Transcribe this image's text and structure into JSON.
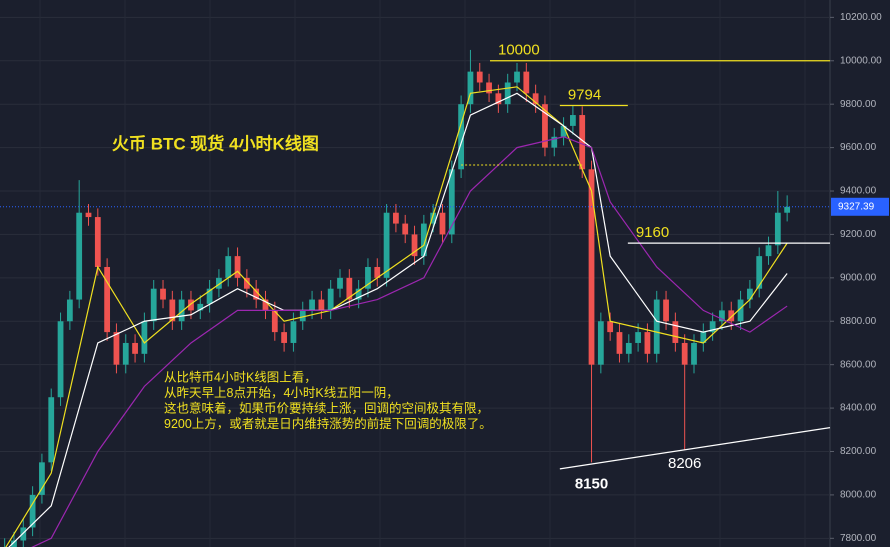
{
  "chart_data": {
    "type": "candlestick",
    "title": "火币 BTC 现货 4小时K线图",
    "commentary": [
      "从比特币4小时K线图上看，",
      "从昨天早上8点开始，4小时K线五阳一阴，",
      "这也意味着，如果币价要持续上涨，回调的空间极其有限，",
      "9200上方，或者就是日内维持涨势的前提下回调的极限了。"
    ],
    "up_color": "#26a69a",
    "down_color": "#ef5350",
    "xlim": [
      -0.5,
      88.6
    ],
    "ylim": [
      7760,
      10280
    ],
    "yticks": [
      {
        "value": 7800,
        "label": "7800.00"
      },
      {
        "value": 8000,
        "label": "8000.00"
      },
      {
        "value": 8200,
        "label": "8200.00"
      },
      {
        "value": 8400,
        "label": "8400.00"
      },
      {
        "value": 8600,
        "label": "8600.00"
      },
      {
        "value": 8800,
        "label": "8800.00"
      },
      {
        "value": 9000,
        "label": "9000.00"
      },
      {
        "value": 9200,
        "label": "9200.00"
      },
      {
        "value": 9400,
        "label": "9400.00"
      },
      {
        "value": 9600,
        "label": "9600.00"
      },
      {
        "value": 9800,
        "label": "9800.00"
      },
      {
        "value": 10000,
        "label": "10000.00"
      },
      {
        "value": 10200,
        "label": "10200.00"
      }
    ],
    "grid": true,
    "open": [
      7740,
      7760,
      7790,
      7850,
      8000,
      8150,
      8450,
      8800,
      8900,
      9300,
      9280,
      9050,
      8750,
      8600,
      8700,
      8650,
      8800,
      8950,
      8900,
      8800,
      8900,
      8850,
      8880,
      8950,
      9000,
      9100,
      9000,
      8950,
      8900,
      8850,
      8750,
      8700,
      8800,
      8850,
      8900,
      8850,
      8950,
      9000,
      8900,
      8950,
      9050,
      9000,
      9300,
      9250,
      9200,
      9100,
      9250,
      9300,
      9200,
      9500,
      9800,
      9950,
      9900,
      9850,
      9800,
      9900,
      9950,
      9850,
      9800,
      9600,
      9650,
      9700,
      9750,
      9500,
      8600,
      8800,
      8750,
      8650,
      8700,
      8750,
      8650,
      8900,
      8800,
      8700,
      8600,
      8700,
      8750,
      8800,
      8850,
      8800,
      8900,
      8950,
      9100,
      9150,
      9300
    ],
    "high": [
      7800,
      7830,
      7890,
      8040,
      8190,
      8490,
      8840,
      8940,
      9450,
      9340,
      9320,
      9090,
      8790,
      8740,
      8740,
      8840,
      8990,
      8990,
      8940,
      8940,
      8940,
      8920,
      8990,
      9040,
      9140,
      9140,
      9040,
      8990,
      8940,
      8890,
      8790,
      8840,
      8890,
      8940,
      8940,
      8990,
      9040,
      9040,
      8990,
      9090,
      9090,
      9340,
      9340,
      9290,
      9240,
      9290,
      9340,
      9340,
      9540,
      9840,
      10050,
      9990,
      9940,
      9890,
      9940,
      9990,
      9990,
      9890,
      9840,
      9690,
      9740,
      9794,
      9790,
      9540,
      8840,
      8840,
      8790,
      8740,
      8790,
      8790,
      8940,
      8940,
      8840,
      8740,
      8740,
      8790,
      8840,
      8890,
      8890,
      8940,
      8990,
      9140,
      9190,
      9400,
      9380
    ],
    "low": [
      7700,
      7720,
      7750,
      7810,
      7960,
      8110,
      8410,
      8760,
      8860,
      9240,
      9010,
      8710,
      8560,
      8560,
      8610,
      8610,
      8760,
      8860,
      8760,
      8760,
      8810,
      8810,
      8840,
      8910,
      8960,
      8960,
      8910,
      8860,
      8810,
      8710,
      8660,
      8660,
      8760,
      8810,
      8810,
      8810,
      8910,
      8860,
      8860,
      8910,
      8960,
      8960,
      9210,
      9160,
      9060,
      9060,
      9210,
      9160,
      9160,
      9460,
      9760,
      9860,
      9810,
      9760,
      9760,
      9860,
      9810,
      9760,
      9560,
      9560,
      9610,
      9660,
      9460,
      8150,
      8560,
      8710,
      8610,
      8610,
      8660,
      8610,
      8610,
      8760,
      8660,
      8206,
      8560,
      8660,
      8710,
      8760,
      8760,
      8760,
      8860,
      8910,
      9060,
      9110,
      9260
    ],
    "close": [
      7760,
      7790,
      7850,
      8000,
      8150,
      8450,
      8800,
      8900,
      9300,
      9280,
      9050,
      8750,
      8600,
      8700,
      8650,
      8800,
      8950,
      8900,
      8800,
      8900,
      8850,
      8880,
      8950,
      9000,
      9100,
      9000,
      8950,
      8900,
      8850,
      8750,
      8700,
      8800,
      8850,
      8900,
      8850,
      8950,
      9000,
      8900,
      8950,
      9050,
      9000,
      9300,
      9250,
      9200,
      9100,
      9250,
      9300,
      9200,
      9500,
      9800,
      9950,
      9900,
      9850,
      9800,
      9900,
      9950,
      9850,
      9800,
      9600,
      9650,
      9700,
      9750,
      9500,
      8600,
      8800,
      8750,
      8650,
      8700,
      8750,
      8650,
      8900,
      8800,
      8700,
      8600,
      8700,
      8750,
      8800,
      8850,
      8800,
      8900,
      8950,
      9100,
      9150,
      9300,
      9327.39
    ],
    "series": [
      {
        "color": "#f0e020",
        "x": [
          0,
          5,
          10,
          15,
          20,
          25,
          30,
          35,
          40,
          45,
          50,
          55,
          60,
          63,
          65,
          70,
          75,
          80,
          84
        ],
        "values": [
          7750,
          8100,
          9050,
          8700,
          8880,
          9030,
          8800,
          8850,
          9000,
          9150,
          9850,
          9880,
          9700,
          9400,
          8800,
          8750,
          8700,
          8900,
          9160
        ]
      },
      {
        "color": "#ffffff",
        "x": [
          0,
          5,
          10,
          15,
          20,
          25,
          30,
          35,
          40,
          45,
          50,
          55,
          60,
          63,
          65,
          70,
          75,
          80,
          84
        ],
        "values": [
          7740,
          7950,
          8700,
          8800,
          8830,
          8950,
          8850,
          8850,
          8950,
          9100,
          9750,
          9850,
          9700,
          9600,
          9100,
          8800,
          8750,
          8800,
          9020
        ]
      },
      {
        "color": "#9c27b0",
        "x": [
          0,
          5,
          10,
          15,
          20,
          25,
          30,
          35,
          40,
          45,
          50,
          55,
          60,
          63,
          65,
          70,
          75,
          80,
          84
        ],
        "values": [
          7700,
          7800,
          8200,
          8500,
          8700,
          8850,
          8850,
          8850,
          8900,
          9000,
          9400,
          9600,
          9650,
          9600,
          9350,
          9050,
          8850,
          8750,
          8870
        ]
      }
    ],
    "levels": [
      {
        "value": 10000,
        "x": [
          52.1,
          88.6
        ],
        "color": "#f0e020"
      },
      {
        "value": 9794,
        "x": [
          59.6,
          66.9
        ],
        "color": "#f0e020"
      },
      {
        "value": 9160,
        "x": [
          66.9,
          88.6
        ],
        "color": "#ffffff"
      }
    ],
    "support_line": {
      "value": 9520,
      "x": [
        49,
        62
      ],
      "color": "#f0e020"
    },
    "trendline": {
      "x": [
        59.6,
        88.6
      ],
      "values": [
        8120,
        8310
      ],
      "color": "#ffffff"
    },
    "low_labels": [
      {
        "value": 8150,
        "x": 63
      },
      {
        "value": 8206,
        "x": 73
      }
    ],
    "last_price": 9327.39
  }
}
